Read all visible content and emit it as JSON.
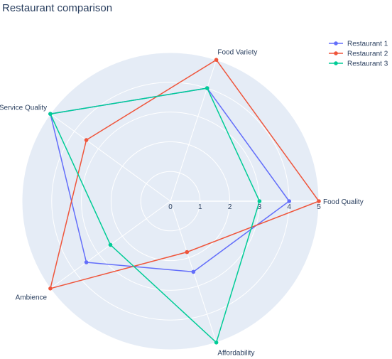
{
  "chart_data": {
    "type": "radar",
    "title": "Restaurant comparison",
    "axes": [
      "Food Quality",
      "Food Variety",
      "Service Quality",
      "Ambience",
      "Affordability"
    ],
    "radial_range": [
      0,
      5
    ],
    "radial_ticks": [
      "0",
      "1",
      "2",
      "3",
      "4",
      "5"
    ],
    "legend_position": "top-right",
    "grid": true,
    "series": [
      {
        "name": "Restaurant 1",
        "color": "#636efa",
        "values": [
          4,
          4,
          5,
          3.5,
          2.5
        ]
      },
      {
        "name": "Restaurant 2",
        "color": "#ef553b",
        "values": [
          5,
          5,
          3.5,
          5,
          1.8
        ]
      },
      {
        "name": "Restaurant 3",
        "color": "#00cc96",
        "values": [
          3,
          4,
          5,
          2.5,
          5
        ]
      }
    ]
  }
}
